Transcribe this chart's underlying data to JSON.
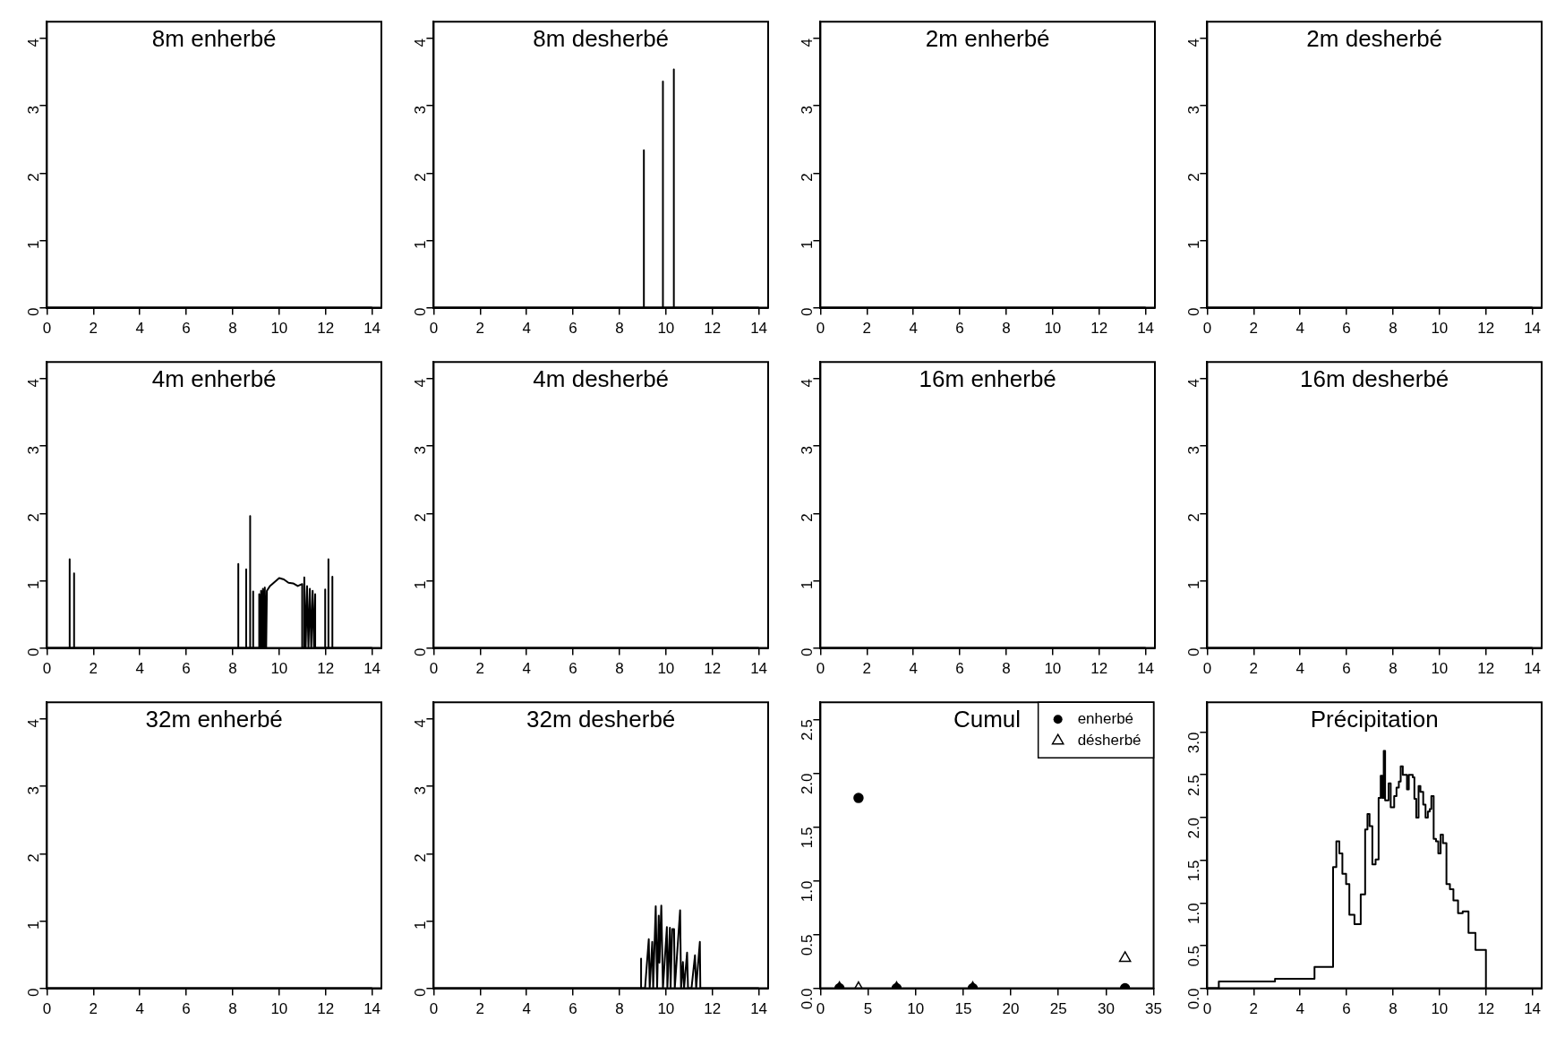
{
  "chart_data": [
    {
      "type": "line",
      "title": "8m enherbé",
      "x": [
        0,
        14
      ],
      "values": [
        0,
        0
      ],
      "color": "#000000",
      "marker": "none",
      "xlim": [
        0,
        14.4
      ],
      "ylim": [
        0,
        4.25
      ],
      "xticks": [
        0,
        2,
        4,
        6,
        8,
        10,
        12,
        14
      ],
      "yticks": [
        0,
        1,
        2,
        3,
        4
      ]
    },
    {
      "type": "line",
      "title": "8m desherbé",
      "x": [
        0,
        9.05,
        9.05,
        9.05,
        9.87,
        9.87,
        9.87,
        10.34,
        10.34,
        10.34,
        14
      ],
      "values": [
        0,
        0,
        2.34,
        0,
        0,
        3.36,
        0,
        0,
        3.54,
        0,
        0
      ],
      "color": "#000000",
      "marker": "none",
      "xlim": [
        0,
        14.4
      ],
      "ylim": [
        0,
        4.25
      ],
      "xticks": [
        0,
        2,
        4,
        6,
        8,
        10,
        12,
        14
      ],
      "yticks": [
        0,
        1,
        2,
        3,
        4
      ]
    },
    {
      "type": "line",
      "title": "2m enherbé",
      "x": [
        0,
        14
      ],
      "values": [
        0,
        0
      ],
      "color": "#000000",
      "marker": "none",
      "xlim": [
        0,
        14.4
      ],
      "ylim": [
        0,
        4.25
      ],
      "xticks": [
        0,
        2,
        4,
        6,
        8,
        10,
        12,
        14
      ],
      "yticks": [
        0,
        1,
        2,
        3,
        4
      ]
    },
    {
      "type": "line",
      "title": "2m desherbé",
      "x": [
        0,
        14
      ],
      "values": [
        0,
        0
      ],
      "color": "#000000",
      "marker": "none",
      "xlim": [
        0,
        14.4
      ],
      "ylim": [
        0,
        4.25
      ],
      "xticks": [
        0,
        2,
        4,
        6,
        8,
        10,
        12,
        14
      ],
      "yticks": [
        0,
        1,
        2,
        3,
        4
      ]
    },
    {
      "type": "line",
      "title": "4m enherbé",
      "x": [
        0,
        0.98,
        0.98,
        0.98,
        1.17,
        1.17,
        1.17,
        8.24,
        8.24,
        8.24,
        8.58,
        8.58,
        8.58,
        8.75,
        8.75,
        8.75,
        8.88,
        8.88,
        8.88,
        9.14,
        9.14,
        9.2,
        9.22,
        9.28,
        9.3,
        9.36,
        9.38,
        9.44,
        9.47,
        9.6,
        9.8,
        10.0,
        10.2,
        10.4,
        10.6,
        10.8,
        10.99,
        10.99,
        11.08,
        11.08,
        11.14,
        11.2,
        11.26,
        11.32,
        11.38,
        11.44,
        11.5,
        11.55,
        11.55,
        11.98,
        11.98,
        11.98,
        12.12,
        12.12,
        12.12,
        12.29,
        12.29,
        12.29,
        14
      ],
      "values": [
        0,
        0,
        1.32,
        0,
        0,
        1.11,
        0,
        0,
        1.25,
        0,
        0,
        1.17,
        0,
        0,
        1.96,
        0,
        0,
        0.84,
        0,
        0,
        0.8,
        0,
        0.85,
        0,
        0.88,
        0,
        0.9,
        0,
        0.85,
        0.92,
        0.98,
        1.04,
        1.02,
        0.97,
        0.96,
        0.92,
        0.95,
        0,
        0,
        1.05,
        0,
        0.92,
        0,
        0.88,
        0,
        0.85,
        0,
        0.8,
        0,
        0,
        0.87,
        0,
        0,
        1.32,
        0,
        0,
        1.06,
        0,
        0
      ],
      "color": "#000000",
      "marker": "none",
      "xlim": [
        0,
        14.4
      ],
      "ylim": [
        0,
        4.25
      ],
      "xticks": [
        0,
        2,
        4,
        6,
        8,
        10,
        12,
        14
      ],
      "yticks": [
        0,
        1,
        2,
        3,
        4
      ]
    },
    {
      "type": "line",
      "title": "4m desherbé",
      "x": [
        0,
        14
      ],
      "values": [
        0,
        0
      ],
      "color": "#000000",
      "marker": "none",
      "xlim": [
        0,
        14.4
      ],
      "ylim": [
        0,
        4.25
      ],
      "xticks": [
        0,
        2,
        4,
        6,
        8,
        10,
        12,
        14
      ],
      "yticks": [
        0,
        1,
        2,
        3,
        4
      ]
    },
    {
      "type": "line",
      "title": "16m enherbé",
      "x": [
        0,
        14
      ],
      "values": [
        0,
        0
      ],
      "color": "#000000",
      "marker": "none",
      "xlim": [
        0,
        14.4
      ],
      "ylim": [
        0,
        4.25
      ],
      "xticks": [
        0,
        2,
        4,
        6,
        8,
        10,
        12,
        14
      ],
      "yticks": [
        0,
        1,
        2,
        3,
        4
      ]
    },
    {
      "type": "line",
      "title": "16m desherbé",
      "x": [
        0,
        14
      ],
      "values": [
        0,
        0
      ],
      "color": "#000000",
      "marker": "none",
      "xlim": [
        0,
        14.4
      ],
      "ylim": [
        0,
        4.25
      ],
      "xticks": [
        0,
        2,
        4,
        6,
        8,
        10,
        12,
        14
      ],
      "yticks": [
        0,
        1,
        2,
        3,
        4
      ]
    },
    {
      "type": "line",
      "title": "32m enherbé",
      "x": [
        0,
        14
      ],
      "values": [
        0,
        0
      ],
      "color": "#000000",
      "marker": "none",
      "xlim": [
        0,
        14.4
      ],
      "ylim": [
        0,
        4.25
      ],
      "xticks": [
        0,
        2,
        4,
        6,
        8,
        10,
        12,
        14
      ],
      "yticks": [
        0,
        1,
        2,
        3,
        4
      ]
    },
    {
      "type": "line",
      "title": "32m desherbé",
      "x": [
        0,
        8.93,
        8.93,
        8.93,
        9.1,
        9.26,
        9.3,
        9.41,
        9.45,
        9.56,
        9.62,
        9.69,
        9.72,
        9.8,
        9.87,
        10.04,
        10.06,
        10.17,
        10.2,
        10.27,
        10.35,
        10.38,
        10.61,
        10.65,
        10.73,
        10.78,
        10.91,
        10.95,
        11.1,
        11.25,
        11.3,
        11.46,
        11.48,
        14
      ],
      "values": [
        0,
        0,
        0.44,
        0,
        0,
        0.73,
        0,
        0.69,
        0,
        1.22,
        0,
        1.08,
        0.38,
        1.23,
        0,
        0.91,
        0,
        0.9,
        0,
        0.88,
        0.88,
        0,
        1.16,
        0,
        0.39,
        0,
        0.53,
        0,
        0,
        0.49,
        0,
        0.69,
        0,
        0
      ],
      "color": "#000000",
      "marker": "none",
      "xlim": [
        0,
        14.4
      ],
      "ylim": [
        0,
        4.25
      ],
      "xticks": [
        0,
        2,
        4,
        6,
        8,
        10,
        12,
        14
      ],
      "yticks": [
        0,
        1,
        2,
        3,
        4
      ]
    },
    {
      "type": "scatter",
      "title": "Cumul",
      "legend": "top right",
      "xlim": [
        0,
        35
      ],
      "ylim": [
        0,
        2.66
      ],
      "xticks": [
        0,
        5,
        10,
        15,
        20,
        25,
        30,
        35
      ],
      "yticks": [
        {
          "value": 0,
          "label": "0.0"
        },
        {
          "value": 0.5,
          "label": "0.5"
        },
        {
          "value": 1,
          "label": "1.0"
        },
        {
          "value": 1.5,
          "label": "1.5"
        },
        {
          "value": 2,
          "label": "2.0"
        },
        {
          "value": 2.5,
          "label": "2.5"
        }
      ],
      "series": [
        {
          "name": "enherbé",
          "color": "#000000",
          "marker": "circle",
          "x": [
            2,
            4,
            8,
            16,
            32
          ],
          "values": [
            0,
            1.77,
            0,
            0,
            0
          ]
        },
        {
          "name": "désherbé",
          "color": "#000000",
          "marker": "triangle",
          "x": [
            2,
            4,
            8,
            16,
            32
          ],
          "values": [
            0,
            0,
            0,
            0,
            0.28
          ]
        }
      ]
    },
    {
      "type": "step",
      "title": "Précipitation",
      "color": "#000000",
      "marker": "none",
      "xlim": [
        0,
        14.4
      ],
      "ylim": [
        0,
        3.35
      ],
      "xticks": [
        0,
        2,
        4,
        6,
        8,
        10,
        12,
        14
      ],
      "yticks": [
        {
          "value": 0,
          "label": "0.0"
        },
        {
          "value": 0.5,
          "label": "0.5"
        },
        {
          "value": 1,
          "label": "1.0"
        },
        {
          "value": 1.5,
          "label": "1.5"
        },
        {
          "value": 2,
          "label": "2.0"
        },
        {
          "value": 2.5,
          "label": "2.5"
        },
        {
          "value": 3,
          "label": "3.0"
        }
      ],
      "x": [
        0,
        0.5,
        2.92,
        4.62,
        5.42,
        5.56,
        5.69,
        5.82,
        5.98,
        6.12,
        6.34,
        6.61,
        6.8,
        6.9,
        6.99,
        7.11,
        7.25,
        7.38,
        7.47,
        7.54,
        7.6,
        7.66,
        7.81,
        7.9,
        8.05,
        8.15,
        8.25,
        8.33,
        8.42,
        8.6,
        8.68,
        8.85,
        8.92,
        9.0,
        9.1,
        9.18,
        9.3,
        9.4,
        9.5,
        9.58,
        9.65,
        9.75,
        9.85,
        9.95,
        10.05,
        10.15,
        10.3,
        10.45,
        10.6,
        10.8,
        11.0,
        11.25,
        11.55,
        12
      ],
      "values": [
        0,
        0.08,
        0.11,
        0.25,
        1.42,
        1.72,
        1.58,
        1.34,
        1.22,
        0.86,
        0.75,
        1.1,
        1.86,
        2.04,
        1.9,
        1.45,
        1.51,
        2.23,
        2.49,
        2.23,
        2.78,
        2.2,
        2.4,
        2.12,
        2.25,
        2.35,
        2.42,
        2.6,
        2.5,
        2.33,
        2.5,
        2.47,
        2.22,
        2.0,
        2.37,
        2.3,
        2.15,
        2.0,
        2.07,
        2.1,
        2.25,
        1.75,
        1.72,
        1.58,
        1.8,
        1.7,
        1.22,
        1.16,
        1.03,
        0.88,
        0.9,
        0.65,
        0.45,
        0
      ]
    }
  ]
}
